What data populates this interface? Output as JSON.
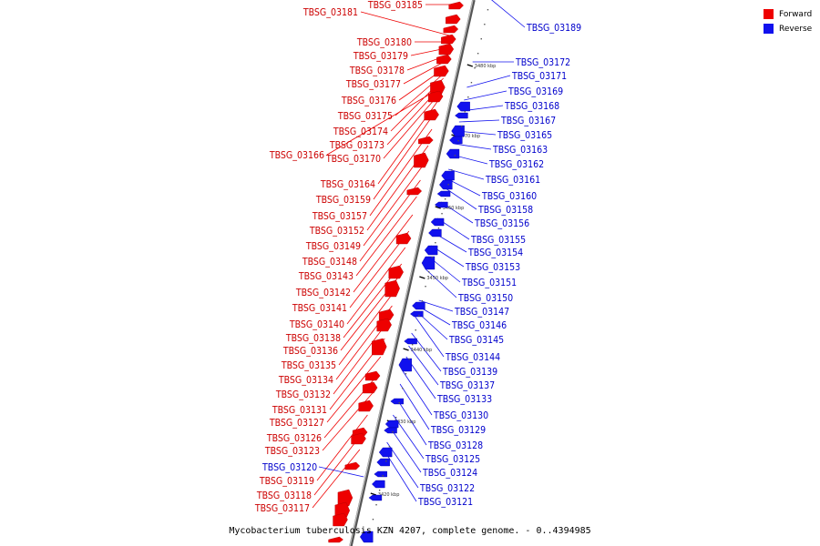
{
  "caption": "Mycobacterium tuberculosis KZN 4207, complete genome. - 0..4394985",
  "legend": [
    {
      "label": "Forward",
      "color": "#ee0000"
    },
    {
      "label": "Reverse",
      "color": "#1111ee"
    }
  ],
  "colors": {
    "forward": "#ee0000",
    "reverse": "#1111ee",
    "forward_text": "#cc0000",
    "reverse_text": "#0000cc",
    "axis": "#8a8a8a"
  },
  "scale_ticks": [
    "3480 kbp",
    "3470 kbp",
    "3460 kbp",
    "3450 kbp",
    "3440 kbp",
    "3430 kbp",
    "3420 kbp"
  ],
  "forward_genes": [
    "TBSG_03185",
    "TBSG_03181",
    "TBSG_03180",
    "TBSG_03179",
    "TBSG_03178",
    "TBSG_03177",
    "TBSG_03176",
    "TBSG_03175",
    "TBSG_03174",
    "TBSG_03173",
    "TBSG_03166",
    "TBSG_03170",
    "TBSG_03164",
    "TBSG_03159",
    "TBSG_03157",
    "TBSG_03152",
    "TBSG_03149",
    "TBSG_03148",
    "TBSG_03143",
    "TBSG_03142",
    "TBSG_03141",
    "TBSG_03140",
    "TBSG_03138",
    "TBSG_03136",
    "TBSG_03135",
    "TBSG_03134",
    "TBSG_03132",
    "TBSG_03131",
    "TBSG_03127",
    "TBSG_03126",
    "TBSG_03123",
    "TBSG_03119",
    "TBSG_03118",
    "TBSG_03117"
  ],
  "reverse_genes": [
    "TBSG_03189",
    "TBSG_03172",
    "TBSG_03171",
    "TBSG_03169",
    "TBSG_03168",
    "TBSG_03167",
    "TBSG_03165",
    "TBSG_03163",
    "TBSG_03162",
    "TBSG_03161",
    "TBSG_03160",
    "TBSG_03158",
    "TBSG_03156",
    "TBSG_03155",
    "TBSG_03154",
    "TBSG_03153",
    "TBSG_03151",
    "TBSG_03150",
    "TBSG_03147",
    "TBSG_03146",
    "TBSG_03145",
    "TBSG_03144",
    "TBSG_03139",
    "TBSG_03137",
    "TBSG_03133",
    "TBSG_03130",
    "TBSG_03129",
    "TBSG_03128",
    "TBSG_03125",
    "TBSG_03124",
    "TBSG_03122",
    "TBSG_03121",
    "TBSG_03120"
  ]
}
